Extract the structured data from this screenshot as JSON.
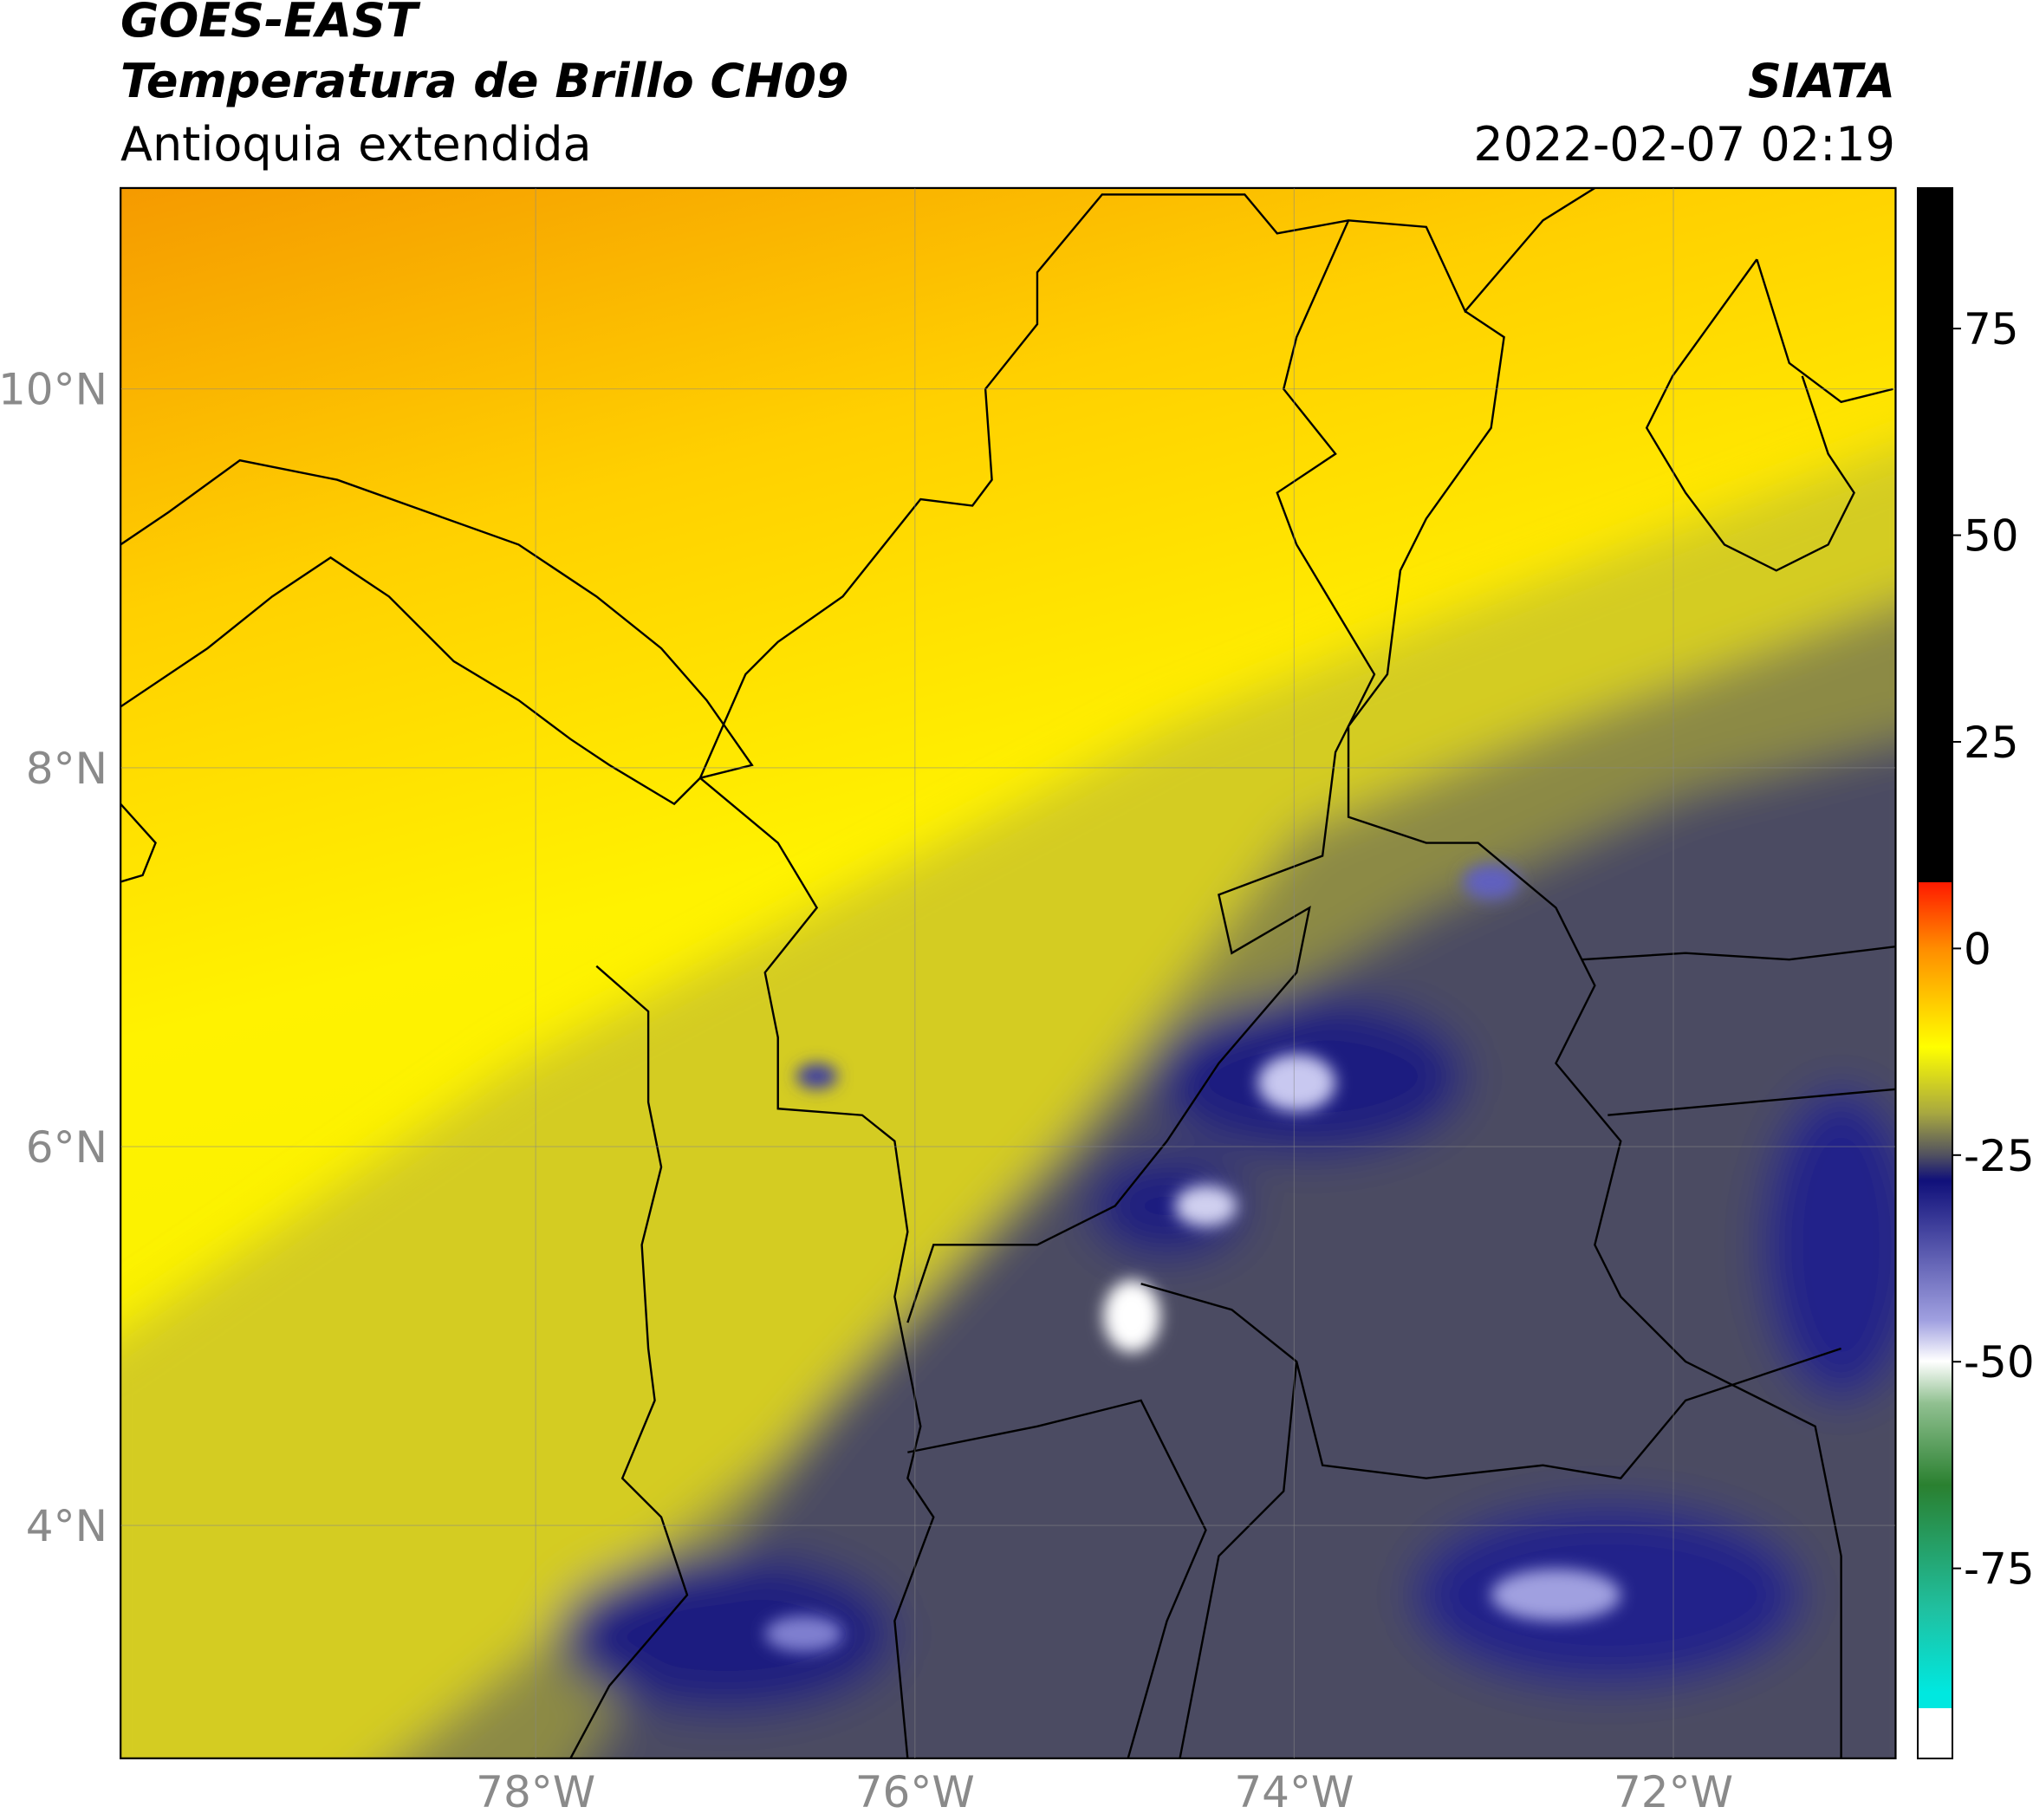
{
  "header": {
    "title": "GOES-EAST",
    "subtitle": "Temperatura de Brillo CH09",
    "region": "Antioquia extendida",
    "source": "SIATA",
    "datetime": "2022-02-07 02:19"
  },
  "map": {
    "lonlim": [
      -80.19,
      -70.83
    ],
    "latlim": [
      2.77,
      11.06
    ],
    "lonticks": [
      {
        "value": -78,
        "label": "78°W"
      },
      {
        "value": -76,
        "label": "76°W"
      },
      {
        "value": -74,
        "label": "74°W"
      },
      {
        "value": -72,
        "label": "72°W"
      }
    ],
    "latticks": [
      {
        "value": 10,
        "label": "10°N"
      },
      {
        "value": 8,
        "label": "8°N"
      },
      {
        "value": 6,
        "label": "6°N"
      },
      {
        "value": 4,
        "label": "4°N"
      }
    ],
    "colorbar": {
      "lim": [
        -98,
        92
      ],
      "ticks": [
        75,
        50,
        25,
        0,
        -25,
        -50,
        -75
      ]
    }
  }
}
